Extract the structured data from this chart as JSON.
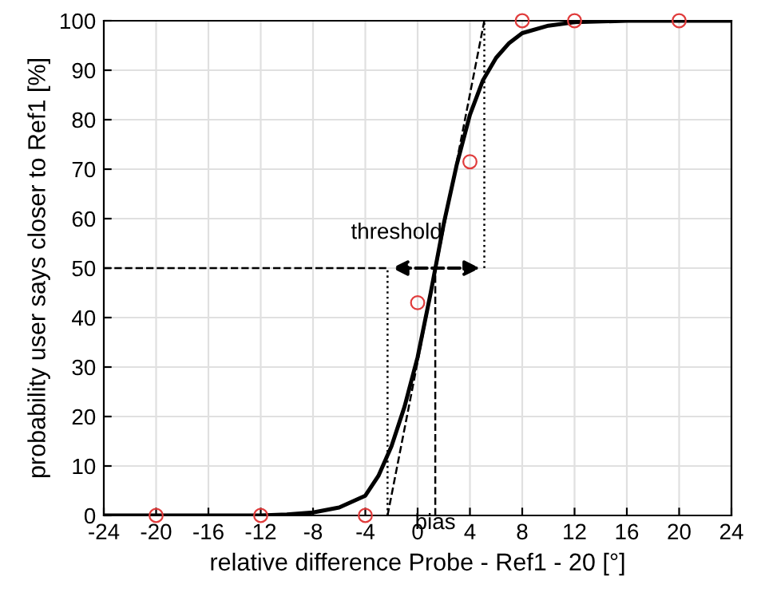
{
  "chart_data": {
    "type": "line",
    "xlabel": "relative difference Probe - Ref1 - 20 [°]",
    "ylabel": "probability user says closer to Ref1 [%]",
    "xlim": [
      -24,
      24
    ],
    "xticks": [
      -24,
      -20,
      -16,
      -12,
      -8,
      -4,
      0,
      4,
      8,
      12,
      16,
      20,
      24
    ],
    "ylim": [
      0,
      100
    ],
    "yticks": [
      0,
      10,
      20,
      30,
      40,
      50,
      60,
      70,
      80,
      90,
      100
    ],
    "grid": true,
    "series": [
      {
        "type": "scatter",
        "color": "#e03c3c",
        "marker": "circle",
        "x": [
          -20,
          -12,
          -4,
          0,
          4,
          8,
          12,
          20
        ],
        "values": [
          0,
          0,
          0,
          43,
          71.5,
          100,
          100,
          100
        ]
      },
      {
        "color": "#000000",
        "line_style": "solid",
        "x": [
          -24,
          -16,
          -12,
          -10,
          -8,
          -6,
          -4,
          -3,
          -2,
          -1,
          0,
          1,
          2,
          3,
          4,
          5,
          6,
          7,
          8,
          10,
          12,
          16,
          24
        ],
        "values": [
          0,
          0,
          0,
          0.2,
          0.6,
          1.6,
          4,
          8,
          14,
          22,
          32,
          45,
          59,
          71,
          81,
          88,
          92.5,
          95.5,
          97.5,
          99,
          99.7,
          100,
          100
        ]
      },
      {
        "color": "#000000",
        "line_style": "dashed",
        "x": [
          -2.3,
          5.1
        ],
        "values": [
          0,
          100
        ]
      },
      {
        "color": "#000000",
        "line_style": "dashed",
        "x": [
          -24,
          -2.3
        ],
        "values": [
          50,
          50
        ]
      },
      {
        "color": "#000000",
        "line_style": "dashed",
        "x": [
          1.35,
          1.35
        ],
        "values": [
          0,
          50
        ]
      },
      {
        "color": "#000000",
        "line_style": "dotted",
        "x": [
          -2.3,
          -2.3
        ],
        "values": [
          0,
          50
        ]
      },
      {
        "color": "#000000",
        "line_style": "dotted",
        "x": [
          5.1,
          5.1
        ],
        "values": [
          50,
          100
        ]
      }
    ],
    "annotations": [
      {
        "text": "threshold",
        "x": -2.3,
        "y": 50
      },
      {
        "text": "bias",
        "x": 1.35,
        "y": 0
      }
    ]
  }
}
